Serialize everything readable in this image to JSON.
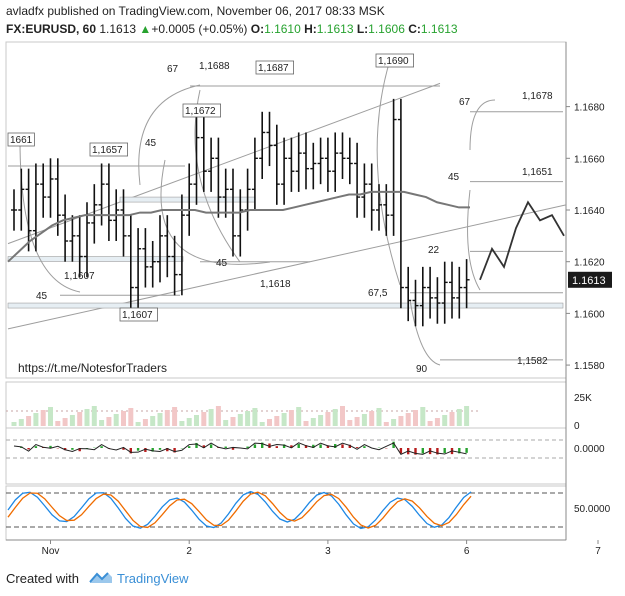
{
  "header": {
    "author": "avladfx",
    "published_text": "published on TradingView.com, November 06, 2017 08:33 MSK",
    "symbol": "FX:EURUSD, 60",
    "last": "1.1613",
    "change_arrow": "▲",
    "change": "+0.0005 (+0.05%)",
    "o_label": "O:",
    "o_value": "1.1610",
    "h_label": "H:",
    "h_value": "1.1613",
    "l_label": "L:",
    "l_value": "1.1606",
    "c_label": "C:",
    "c_value": "1.1613"
  },
  "footer": {
    "created_with": "Created with",
    "brand": "TradingView"
  },
  "colors": {
    "up": "#27a22f",
    "down": "#b71c1c",
    "blue": "#1e88e5",
    "orange": "#ef6c00",
    "price_bg": "#1a1a1a",
    "brand": "#3a8fd6"
  },
  "chart_data": {
    "type": "line",
    "price_axis": {
      "ylim": [
        1.1575,
        1.1705
      ],
      "ticks": [
        "1.1680",
        "1.1660",
        "1.1640",
        "1.1620",
        "1.1600",
        "1.1580"
      ],
      "current": "1.1613"
    },
    "x_labels": [
      {
        "label": "Nov",
        "bar": 5
      },
      {
        "label": "2",
        "bar": 24
      },
      {
        "label": "3",
        "bar": 43
      },
      {
        "label": "6",
        "bar": 62
      },
      {
        "label": "7",
        "bar": 80
      }
    ],
    "ohlc_close": [
      1.164,
      1.1648,
      1.1632,
      1.165,
      1.1645,
      1.1652,
      1.1638,
      1.1628,
      1.163,
      1.1622,
      1.1635,
      1.1642,
      1.165,
      1.1636,
      1.164,
      1.163,
      1.161,
      1.1625,
      1.1618,
      1.162,
      1.163,
      1.1622,
      1.1615,
      1.1638,
      1.165,
      1.1668,
      1.1655,
      1.166,
      1.1645,
      1.1648,
      1.163,
      1.164,
      1.1648,
      1.166,
      1.167,
      1.1665,
      1.165,
      1.166,
      1.1655,
      1.1662,
      1.1656,
      1.1658,
      1.166,
      1.1655,
      1.1662,
      1.166,
      1.1658,
      1.1645,
      1.165,
      1.164,
      1.1642,
      1.1638,
      1.1675,
      1.161,
      1.1605,
      1.1603,
      1.161,
      1.1606,
      1.1604,
      1.1612,
      1.1606,
      1.161,
      1.1613
    ],
    "moving_average": [
      1.162,
      1.1624,
      1.1628,
      1.1631,
      1.1634,
      1.1636,
      1.1637,
      1.1638,
      1.1638,
      1.1638,
      1.1638,
      1.1638,
      1.1639,
      1.1639,
      1.164,
      1.164,
      1.164,
      1.164,
      1.1639,
      1.1639,
      1.1639,
      1.1639,
      1.164,
      1.164,
      1.164,
      1.164,
      1.1641,
      1.1642,
      1.1643,
      1.1644,
      1.1645,
      1.1646,
      1.1646,
      1.1647,
      1.1647,
      1.1647,
      1.1647,
      1.1646,
      1.1645,
      1.1643,
      1.1642,
      1.1641,
      1.1641
    ],
    "projection": [
      1.1613,
      1.1625,
      1.1618,
      1.1633,
      1.1643,
      1.1636,
      1.1638,
      1.163
    ],
    "levels": [
      {
        "price": 1.1688,
        "label": "1,1688"
      },
      {
        "price": 1.1687,
        "label": "1,1687"
      },
      {
        "price": 1.169,
        "label": "1,1690"
      },
      {
        "price": 1.1672,
        "label": "1,1672"
      },
      {
        "price": 1.1661,
        "label": "1661"
      },
      {
        "price": 1.1657,
        "label": "1,1657"
      },
      {
        "price": 1.1607,
        "label": "1,1607"
      },
      {
        "price": 1.1618,
        "label": "1,1618"
      },
      {
        "price": 1.1678,
        "label": "1,1678"
      },
      {
        "price": 1.1651,
        "label": "1,1651"
      },
      {
        "price": 1.1582,
        "label": "1,1582"
      }
    ],
    "angle_labels": [
      "67",
      "45",
      "45",
      "67",
      "45",
      "67,5",
      "22",
      "90",
      "45",
      "1,1607"
    ],
    "watermark": "https://t.me/NotesforTraders",
    "volume_axis": {
      "ticks": [
        "25K",
        "0"
      ]
    },
    "macd_axis": {
      "ticks": [
        "0.0000"
      ]
    },
    "stoch_axis": {
      "ticks": [
        "50.0000"
      ]
    }
  }
}
